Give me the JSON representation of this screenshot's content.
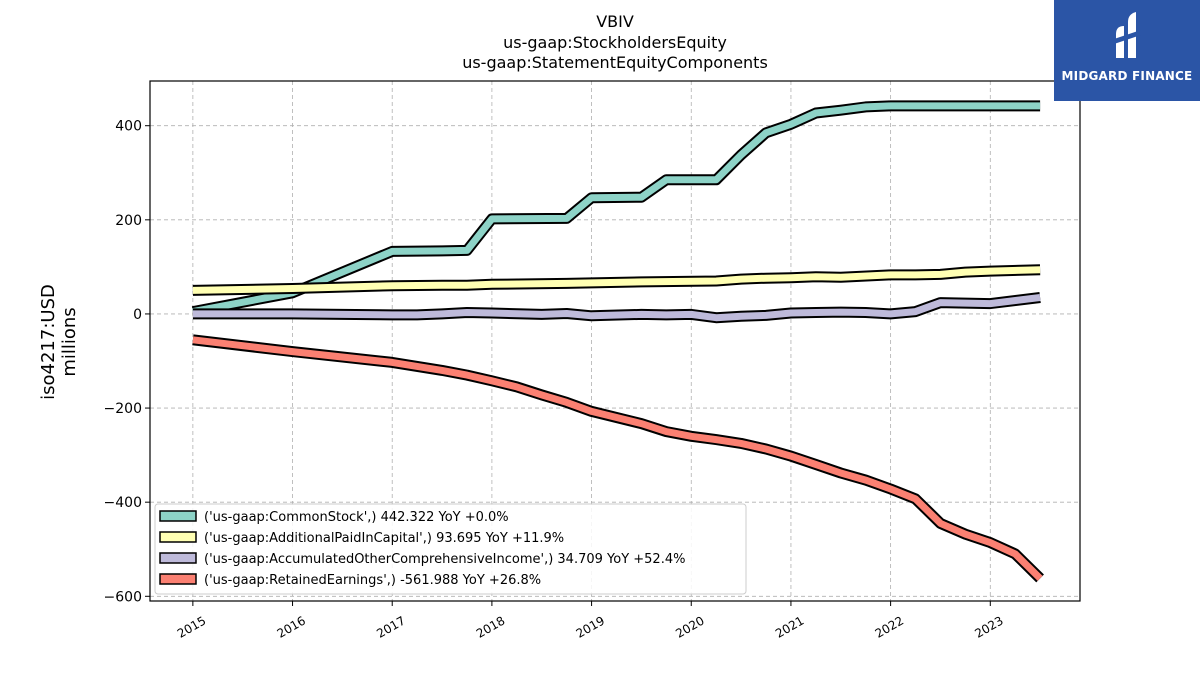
{
  "chart_data": {
    "type": "line",
    "title_lines": [
      "VBIV",
      "us-gaap:StockholdersEquity",
      "us-gaap:StatementEquityComponents"
    ],
    "ylabel_lines": [
      "iso4217:USD",
      "millions"
    ],
    "xlim": [
      2014.57,
      2023.9
    ],
    "ylim": [
      -610,
      495
    ],
    "yticks": [
      400,
      200,
      0,
      -200,
      -400,
      -600
    ],
    "ytick_labels": [
      "400",
      "200",
      "0",
      "−200",
      "−400",
      "−600"
    ],
    "xticks": [
      2015,
      2016,
      2017,
      2018,
      2019,
      2020,
      2021,
      2022,
      2023
    ],
    "xtick_labels": [
      "2015",
      "2016",
      "2017",
      "2018",
      "2019",
      "2020",
      "2021",
      "2022",
      "2023"
    ],
    "grid": true,
    "legend_position": "lower-left",
    "series": [
      {
        "name": "('us-gaap:CommonStock',) 442.322 YoY +0.0%",
        "color": "#8dd3c7",
        "x": [
          2015.0,
          2016.0,
          2017.0,
          2017.5,
          2017.75,
          2018.0,
          2018.75,
          2019.0,
          2019.5,
          2019.75,
          2020.25,
          2020.5,
          2020.75,
          2021.0,
          2021.25,
          2021.5,
          2021.75,
          2022.0,
          2022.5,
          2023.5
        ],
        "y": [
          5,
          45,
          133,
          134,
          135,
          202,
          203,
          247,
          248,
          285,
          285,
          338,
          385,
          403,
          427,
          433,
          440,
          442,
          442,
          442
        ]
      },
      {
        "name": "('us-gaap:AdditionalPaidInCapital',) 93.695 YoY +11.9%",
        "color": "#ffffb3",
        "x": [
          2015.0,
          2016.0,
          2017.0,
          2017.5,
          2017.75,
          2018.0,
          2018.75,
          2019.0,
          2019.5,
          2020.25,
          2020.5,
          2020.75,
          2021.0,
          2021.25,
          2021.5,
          2022.0,
          2022.25,
          2022.5,
          2022.75,
          2023.0,
          2023.5
        ],
        "y": [
          50,
          54,
          60,
          61,
          61,
          63,
          65,
          66,
          68,
          70,
          74,
          76,
          77,
          79,
          78,
          83,
          83,
          84,
          89,
          91,
          94
        ]
      },
      {
        "name": "('us-gaap:AccumulatedOtherComprehensiveIncome',) 34.709 YoY +52.4%",
        "color": "#bebada",
        "x": [
          2015.0,
          2016.0,
          2016.5,
          2017.0,
          2017.25,
          2017.5,
          2017.75,
          2018.0,
          2018.5,
          2018.75,
          2019.0,
          2019.5,
          2019.75,
          2020.0,
          2020.25,
          2020.5,
          2020.75,
          2021.0,
          2021.25,
          2021.5,
          2021.75,
          2022.0,
          2022.25,
          2022.5,
          2023.0,
          2023.5
        ],
        "y": [
          0,
          0,
          -1,
          -2,
          -2,
          0,
          3,
          2,
          -1,
          1,
          -4,
          -1,
          -2,
          -1,
          -8,
          -5,
          -3,
          2,
          3,
          4,
          3,
          0,
          5,
          24,
          22,
          35
        ]
      },
      {
        "name": "('us-gaap:RetainedEarnings',) -561.988 YoY +26.8%",
        "color": "#fb8072",
        "x": [
          2015.0,
          2016.0,
          2017.0,
          2017.5,
          2017.75,
          2018.0,
          2018.25,
          2018.5,
          2018.75,
          2019.0,
          2019.5,
          2019.75,
          2020.0,
          2020.25,
          2020.5,
          2020.75,
          2021.0,
          2021.25,
          2021.5,
          2021.75,
          2022.0,
          2022.25,
          2022.5,
          2022.75,
          2023.0,
          2023.25,
          2023.5
        ],
        "y": [
          -55,
          -80,
          -103,
          -120,
          -130,
          -142,
          -155,
          -172,
          -188,
          -207,
          -233,
          -250,
          -260,
          -267,
          -275,
          -287,
          -302,
          -320,
          -338,
          -353,
          -372,
          -393,
          -445,
          -468,
          -486,
          -510,
          -562
        ]
      }
    ]
  },
  "brand": {
    "name": "MIDGARD FINANCE",
    "background": "#2b55a6"
  }
}
